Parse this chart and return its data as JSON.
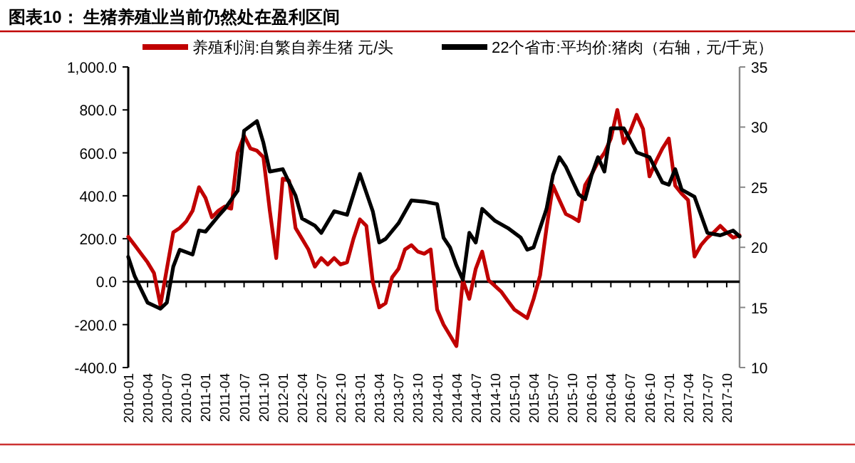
{
  "chart_data": {
    "type": "line",
    "title": "图表10：  生猪养殖业当前仍然处在盈利区间",
    "legend": "top",
    "xlim": [
      "2010-01",
      "2017-12"
    ],
    "xticks": [
      "2010-01",
      "2010-04",
      "2010-07",
      "2010-10",
      "2011-01",
      "2011-04",
      "2011-07",
      "2011-10",
      "2012-01",
      "2012-04",
      "2012-07",
      "2012-10",
      "2013-01",
      "2013-04",
      "2013-07",
      "2013-10",
      "2014-01",
      "2014-04",
      "2014-07",
      "2014-10",
      "2015-01",
      "2015-04",
      "2015-07",
      "2015-10",
      "2016-01",
      "2016-04",
      "2016-07",
      "2016-10",
      "2017-01",
      "2017-04",
      "2017-07",
      "2017-10"
    ],
    "ylim": [
      -400,
      1000
    ],
    "yticks": [
      {
        "value": -400,
        "label": "-400.0"
      },
      {
        "value": -200,
        "label": "-200.0"
      },
      {
        "value": 0,
        "label": "0.0"
      },
      {
        "value": 200,
        "label": "200.0"
      },
      {
        "value": 400,
        "label": "400.0"
      },
      {
        "value": 600,
        "label": "600.0"
      },
      {
        "value": 800,
        "label": "800.0"
      },
      {
        "value": 1000,
        "label": "1,000.0"
      }
    ],
    "y2lim": [
      10,
      35
    ],
    "y2ticks": [
      10,
      15,
      20,
      25,
      30,
      35
    ],
    "series": [
      {
        "name": "养殖利润:自繁自养生猪 元/头",
        "color": "#c00000",
        "x": [
          "2010-01",
          "2010-02",
          "2010-03",
          "2010-04",
          "2010-05",
          "2010-06",
          "2010-07",
          "2010-08",
          "2010-09",
          "2010-10",
          "2010-11",
          "2010-12",
          "2011-01",
          "2011-02",
          "2011-03",
          "2011-04",
          "2011-05",
          "2011-06",
          "2011-07",
          "2011-08",
          "2011-09",
          "2011-10",
          "2011-11",
          "2011-12",
          "2012-01",
          "2012-02",
          "2012-03",
          "2012-04",
          "2012-05",
          "2012-06",
          "2012-07",
          "2012-08",
          "2012-09",
          "2012-10",
          "2012-11",
          "2012-12",
          "2013-01",
          "2013-02",
          "2013-03",
          "2013-04",
          "2013-05",
          "2013-06",
          "2013-07",
          "2013-08",
          "2013-09",
          "2013-10",
          "2013-11",
          "2013-12",
          "2014-01",
          "2014-02",
          "2014-03",
          "2014-04",
          "2014-05",
          "2014-06",
          "2014-07",
          "2014-08",
          "2014-09",
          "2014-10",
          "2014-11",
          "2014-12",
          "2015-01",
          "2015-02",
          "2015-03",
          "2015-04",
          "2015-05",
          "2015-06",
          "2015-07",
          "2015-08",
          "2015-09",
          "2015-10",
          "2015-11",
          "2015-12",
          "2016-01",
          "2016-02",
          "2016-03",
          "2016-04",
          "2016-05",
          "2016-06",
          "2016-07",
          "2016-08",
          "2016-09",
          "2016-10",
          "2016-11",
          "2016-12",
          "2017-01",
          "2017-02",
          "2017-03",
          "2017-04",
          "2017-05",
          "2017-06",
          "2017-07",
          "2017-08",
          "2017-09",
          "2017-10",
          "2017-11",
          "2017-12"
        ],
        "values": [
          209,
          170,
          130,
          90,
          40,
          -110,
          60,
          230,
          250,
          280,
          330,
          440,
          390,
          300,
          330,
          350,
          340,
          600,
          680,
          620,
          610,
          580,
          330,
          110,
          480,
          470,
          250,
          200,
          150,
          70,
          110,
          80,
          110,
          80,
          90,
          200,
          290,
          260,
          0,
          -120,
          -100,
          20,
          60,
          150,
          170,
          140,
          130,
          150,
          -130,
          -200,
          -250,
          -300,
          7,
          -80,
          60,
          140,
          7,
          -20,
          -48,
          -90,
          -130,
          -150,
          -170,
          -80,
          29,
          250,
          447,
          380,
          315,
          300,
          282,
          450,
          500,
          557,
          600,
          667,
          800,
          645,
          700,
          777,
          711,
          490,
          560,
          620,
          667,
          447,
          410,
          380,
          117,
          170,
          205,
          230,
          260,
          230,
          205,
          216
        ]
      },
      {
        "name": "22个省市:平均价:猪肉（右轴，元/千克）",
        "color": "#000000",
        "axis": "y2",
        "x": [
          "2010-01",
          "2010-02",
          "2010-04",
          "2010-06",
          "2010-07",
          "2010-08",
          "2010-09",
          "2010-11",
          "2010-12",
          "2011-01",
          "2011-03",
          "2011-04",
          "2011-06",
          "2011-07",
          "2011-09",
          "2011-10",
          "2011-11",
          "2012-01",
          "2012-03",
          "2012-04",
          "2012-06",
          "2012-07",
          "2012-09",
          "2012-11",
          "2013-01",
          "2013-03",
          "2013-04",
          "2013-05",
          "2013-07",
          "2013-09",
          "2013-11",
          "2014-01",
          "2014-02",
          "2014-03",
          "2014-04",
          "2014-05",
          "2014-06",
          "2014-07",
          "2014-08",
          "2014-10",
          "2014-12",
          "2015-02",
          "2015-03",
          "2015-04",
          "2015-05",
          "2015-06",
          "2015-07",
          "2015-08",
          "2015-09",
          "2015-11",
          "2015-12",
          "2016-01",
          "2016-02",
          "2016-03",
          "2016-04",
          "2016-06",
          "2016-08",
          "2016-10",
          "2016-12",
          "2017-01",
          "2017-02",
          "2017-03",
          "2017-05",
          "2017-07",
          "2017-09",
          "2017-11",
          "2017-12"
        ],
        "values": [
          19.2,
          17.6,
          15.4,
          14.9,
          15.4,
          18.4,
          19.8,
          19.4,
          21.4,
          21.3,
          22.6,
          23.2,
          24.7,
          29.7,
          30.5,
          28.7,
          26.3,
          26.5,
          24.3,
          22.4,
          21.8,
          21.2,
          23,
          22.7,
          26.1,
          23,
          20.4,
          20.7,
          22,
          23.9,
          23.8,
          23.6,
          20.8,
          20,
          18.5,
          17.3,
          21.2,
          20.4,
          23.2,
          22.2,
          21.6,
          20.8,
          19.8,
          20,
          21.6,
          23.2,
          26,
          27.5,
          26.7,
          24.4,
          24,
          26,
          27.5,
          26.3,
          29.9,
          29.9,
          27.9,
          27.5,
          25.4,
          25.2,
          26.5,
          24.8,
          24.2,
          21.2,
          21,
          21.4,
          20.9
        ]
      }
    ]
  }
}
